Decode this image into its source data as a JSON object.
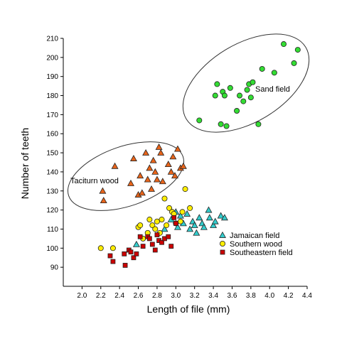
{
  "chart_data": {
    "type": "scatter",
    "title": "",
    "xlabel": "Length of file (mm)",
    "ylabel": "Number of teeth",
    "xlim": [
      1.8,
      4.4
    ],
    "ylim": [
      80,
      210
    ],
    "xticks": [
      "2.0",
      "2.2",
      "2.4",
      "2.6",
      "2.8",
      "3.0",
      "3.2",
      "3.4",
      "3.6",
      "3.8",
      "4.0",
      "4.2",
      "4.4"
    ],
    "yticks": [
      "90",
      "100",
      "110",
      "120",
      "130",
      "140",
      "150",
      "160",
      "170",
      "180",
      "190",
      "200",
      "210"
    ],
    "grid": false,
    "legend_position": "lower-right",
    "group_labels": [
      {
        "text": "Sand field"
      },
      {
        "text": "Taciturn wood"
      }
    ],
    "series": [
      {
        "name": "Jamaican field",
        "marker": "triangle",
        "color": "#33CCCC",
        "points": [
          [
            2.58,
            102
          ],
          [
            2.88,
            110
          ],
          [
            2.95,
            115
          ],
          [
            3.0,
            119
          ],
          [
            3.02,
            111
          ],
          [
            3.05,
            117
          ],
          [
            3.08,
            113
          ],
          [
            3.12,
            118
          ],
          [
            3.15,
            110
          ],
          [
            3.18,
            114
          ],
          [
            3.2,
            112
          ],
          [
            3.22,
            108
          ],
          [
            3.25,
            116
          ],
          [
            3.28,
            113
          ],
          [
            3.3,
            111
          ],
          [
            3.35,
            120
          ],
          [
            3.36,
            116
          ],
          [
            3.4,
            112
          ],
          [
            3.42,
            114
          ],
          [
            3.48,
            117
          ],
          [
            3.52,
            116
          ]
        ]
      },
      {
        "name": "Southern wood",
        "marker": "circle",
        "color": "#FFEE00",
        "points": [
          [
            2.2,
            100
          ],
          [
            2.33,
            100
          ],
          [
            2.6,
            111
          ],
          [
            2.62,
            112
          ],
          [
            2.65,
            105
          ],
          [
            2.7,
            108
          ],
          [
            2.72,
            115
          ],
          [
            2.75,
            112
          ],
          [
            2.78,
            110
          ],
          [
            2.8,
            114
          ],
          [
            2.83,
            108
          ],
          [
            2.85,
            115
          ],
          [
            2.88,
            126
          ],
          [
            2.9,
            112
          ],
          [
            2.93,
            121
          ],
          [
            2.96,
            119
          ],
          [
            2.98,
            118
          ],
          [
            3.0,
            113
          ],
          [
            3.05,
            114
          ],
          [
            3.07,
            119
          ],
          [
            3.1,
            131
          ],
          [
            3.15,
            121
          ]
        ]
      },
      {
        "name": "Southeastern field",
        "marker": "square",
        "color": "#CC0000",
        "points": [
          [
            2.3,
            96
          ],
          [
            2.33,
            93
          ],
          [
            2.45,
            97
          ],
          [
            2.46,
            91
          ],
          [
            2.5,
            99
          ],
          [
            2.52,
            98
          ],
          [
            2.55,
            95
          ],
          [
            2.58,
            97
          ],
          [
            2.62,
            106
          ],
          [
            2.65,
            101
          ],
          [
            2.7,
            106
          ],
          [
            2.72,
            105
          ],
          [
            2.75,
            102
          ],
          [
            2.78,
            99
          ],
          [
            2.8,
            107
          ],
          [
            2.82,
            104
          ],
          [
            2.85,
            103
          ],
          [
            2.88,
            105
          ],
          [
            2.92,
            106
          ],
          [
            2.95,
            101
          ],
          [
            2.98,
            116
          ],
          [
            3.0,
            113
          ]
        ]
      },
      {
        "name": "Taciturn wood",
        "marker": "triangle",
        "color": "#E8641A",
        "points": [
          [
            2.22,
            130
          ],
          [
            2.23,
            125
          ],
          [
            2.35,
            143
          ],
          [
            2.52,
            134
          ],
          [
            2.55,
            147
          ],
          [
            2.6,
            128
          ],
          [
            2.62,
            138
          ],
          [
            2.64,
            129
          ],
          [
            2.68,
            150
          ],
          [
            2.7,
            136
          ],
          [
            2.72,
            142
          ],
          [
            2.74,
            131
          ],
          [
            2.76,
            146
          ],
          [
            2.78,
            140
          ],
          [
            2.8,
            136
          ],
          [
            2.82,
            153
          ],
          [
            2.84,
            150
          ],
          [
            2.86,
            135
          ],
          [
            2.92,
            144
          ],
          [
            2.95,
            140
          ],
          [
            2.97,
            148
          ],
          [
            2.99,
            138
          ],
          [
            3.02,
            152
          ],
          [
            3.05,
            142
          ],
          [
            3.08,
            143
          ]
        ]
      },
      {
        "name": "Sand field",
        "marker": "circle",
        "color": "#33DD33",
        "points": [
          [
            3.25,
            167
          ],
          [
            3.42,
            180
          ],
          [
            3.44,
            186
          ],
          [
            3.48,
            165
          ],
          [
            3.5,
            182
          ],
          [
            3.52,
            180
          ],
          [
            3.54,
            164
          ],
          [
            3.58,
            184
          ],
          [
            3.65,
            172
          ],
          [
            3.68,
            180
          ],
          [
            3.72,
            177
          ],
          [
            3.76,
            183
          ],
          [
            3.78,
            186
          ],
          [
            3.8,
            179
          ],
          [
            3.82,
            187
          ],
          [
            3.88,
            165
          ],
          [
            3.92,
            194
          ],
          [
            4.05,
            192
          ],
          [
            4.15,
            207
          ],
          [
            4.26,
            197
          ],
          [
            4.3,
            204
          ]
        ]
      }
    ]
  }
}
